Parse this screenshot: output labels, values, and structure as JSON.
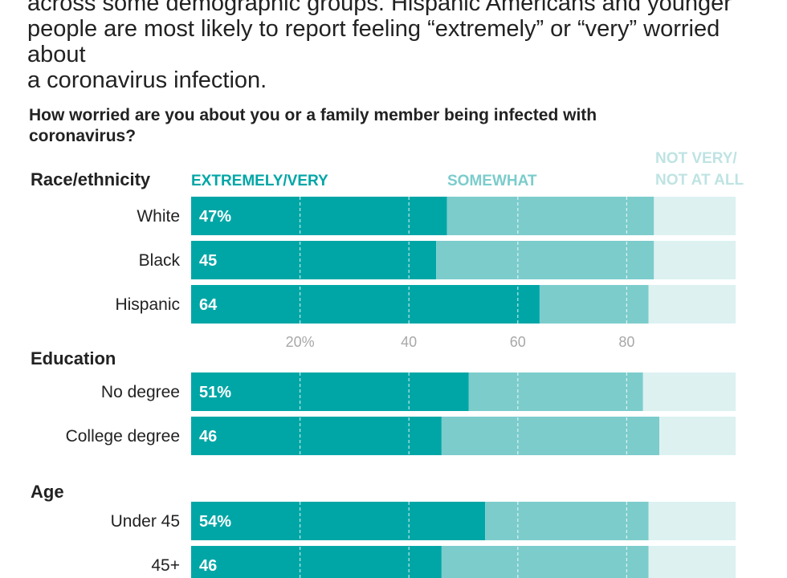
{
  "intro_text": "across some demographic groups. Hispanic Americans and younger\npeople are most likely to report feeling “extremely” or “very” worried about\na coronavirus infection.",
  "colors": {
    "extremely_very": "#00a6a6",
    "somewhat": "#7ccccc",
    "not_very": "#ddf1f1",
    "tick": "#a8a8a8"
  },
  "chart_data": {
    "type": "bar",
    "stacked": true,
    "orientation": "horizontal",
    "title": "How worried are you about you or a family member being infected with\ncoronavirus?",
    "legend": [
      {
        "name": "EXTREMELY/VERY"
      },
      {
        "name": "SOMEWHAT"
      },
      {
        "name": "NOT VERY/\nNOT AT ALL"
      }
    ],
    "xlim": [
      0,
      100
    ],
    "x_ticks": [
      20,
      40,
      60,
      80
    ],
    "x_tick_labels": [
      "20%",
      "40",
      "60",
      "80"
    ],
    "grid": true,
    "groups": [
      {
        "title": "Race/ethnicity",
        "rows": [
          {
            "label": "White",
            "value_label": "47%",
            "extremely_very": 47,
            "somewhat": 38,
            "not_very": 15
          },
          {
            "label": "Black",
            "value_label": "45",
            "extremely_very": 45,
            "somewhat": 40,
            "not_very": 15
          },
          {
            "label": "Hispanic",
            "value_label": "64",
            "extremely_very": 64,
            "somewhat": 20,
            "not_very": 16
          }
        ]
      },
      {
        "title": "Education",
        "rows": [
          {
            "label": "No degree",
            "value_label": "51%",
            "extremely_very": 51,
            "somewhat": 32,
            "not_very": 17
          },
          {
            "label": "College degree",
            "value_label": "46",
            "extremely_very": 46,
            "somewhat": 40,
            "not_very": 14
          }
        ]
      },
      {
        "title": "Age",
        "rows": [
          {
            "label": "Under 45",
            "value_label": "54%",
            "extremely_very": 54,
            "somewhat": 30,
            "not_very": 16
          },
          {
            "label": "45+",
            "value_label": "46",
            "extremely_very": 46,
            "somewhat": 38,
            "not_very": 16
          }
        ]
      }
    ]
  }
}
